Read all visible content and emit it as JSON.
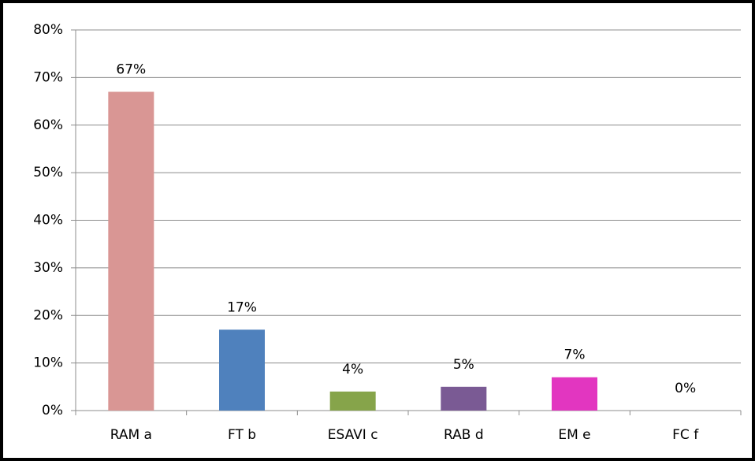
{
  "chart_data": {
    "type": "bar",
    "categories": [
      "RAM a",
      "FT b",
      "ESAVI c",
      "RAB d",
      "EM e",
      "FC f"
    ],
    "values": [
      67,
      17,
      4,
      5,
      7,
      0
    ],
    "value_labels": [
      "67%",
      "17%",
      "4%",
      "5%",
      "7%",
      "0%"
    ],
    "colors": [
      "#d99694",
      "#4f81bd",
      "#86a44a",
      "#7a5a94",
      "#e236c0",
      "#b0b0b0"
    ],
    "ylim": [
      0,
      80
    ],
    "yticks": [
      {
        "value": 0,
        "label": "0%"
      },
      {
        "value": 10,
        "label": "10%"
      },
      {
        "value": 20,
        "label": "20%"
      },
      {
        "value": 30,
        "label": "30%"
      },
      {
        "value": 40,
        "label": "40%"
      },
      {
        "value": 50,
        "label": "50%"
      },
      {
        "value": 60,
        "label": "60%"
      },
      {
        "value": 70,
        "label": "70%"
      },
      {
        "value": 80,
        "label": "80%"
      }
    ],
    "grid": true
  }
}
